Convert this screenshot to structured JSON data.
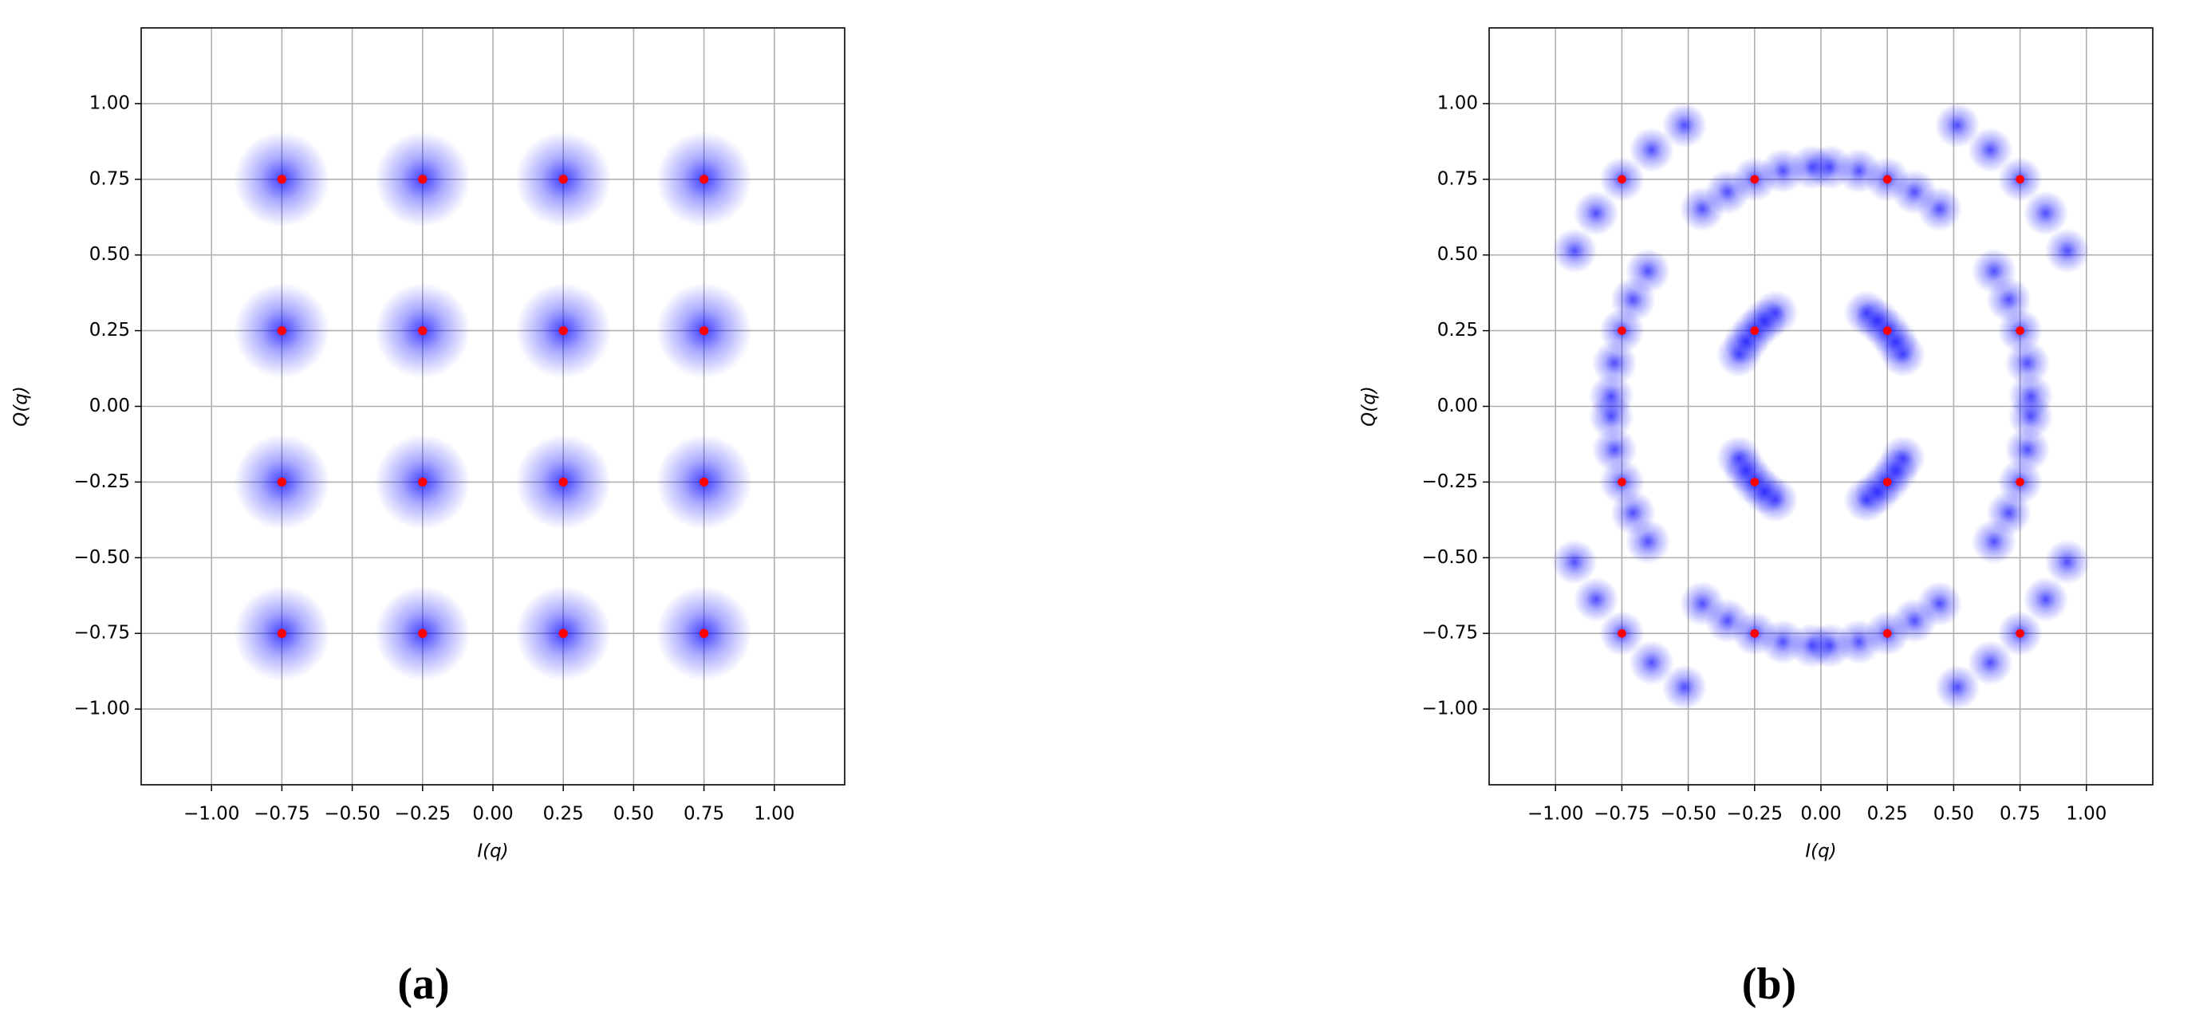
{
  "chart_data": [
    {
      "type": "scatter",
      "xlabel": "I(q)",
      "ylabel": "Q(q)",
      "caption": "(a)",
      "xlim": [
        -1.25,
        1.25
      ],
      "ylim": [
        -1.25,
        1.25
      ],
      "grid": true,
      "xticks": [
        {
          "value": -1,
          "label": "−1.00"
        },
        {
          "value": -0.75,
          "label": "−0.75"
        },
        {
          "value": -0.5,
          "label": "−0.50"
        },
        {
          "value": -0.25,
          "label": "−0.25"
        },
        {
          "value": 0,
          "label": "0.00"
        },
        {
          "value": 0.25,
          "label": "0.25"
        },
        {
          "value": 0.5,
          "label": "0.50"
        },
        {
          "value": 0.75,
          "label": "0.75"
        },
        {
          "value": 1,
          "label": "1.00"
        }
      ],
      "yticks": [
        {
          "value": -1,
          "label": "−1.00"
        },
        {
          "value": -0.75,
          "label": "−0.75"
        },
        {
          "value": -0.5,
          "label": "−0.50"
        },
        {
          "value": -0.25,
          "label": "−0.25"
        },
        {
          "value": 0,
          "label": "0.00"
        },
        {
          "value": 0.25,
          "label": "0.25"
        },
        {
          "value": 0.5,
          "label": "0.50"
        },
        {
          "value": 0.75,
          "label": "0.75"
        },
        {
          "value": 1,
          "label": "1.00"
        }
      ],
      "series": [
        {
          "color": "#0000ff",
          "alpha": 0.75,
          "marker_radius": 0.17,
          "x": [
            -0.75,
            -0.25,
            0.25,
            0.75,
            -0.75,
            -0.25,
            0.25,
            0.75,
            -0.75,
            -0.25,
            0.25,
            0.75,
            -0.75,
            -0.25,
            0.25,
            0.75
          ],
          "y": [
            0.75,
            0.75,
            0.75,
            0.75,
            0.25,
            0.25,
            0.25,
            0.25,
            -0.25,
            -0.25,
            -0.25,
            -0.25,
            -0.75,
            -0.75,
            -0.75,
            -0.75
          ]
        },
        {
          "color": "#ff0000",
          "alpha": 1,
          "marker_radius": 0.016,
          "x": [
            -0.75,
            -0.25,
            0.25,
            0.75,
            -0.75,
            -0.25,
            0.25,
            0.75,
            -0.75,
            -0.25,
            0.25,
            0.75,
            -0.75,
            -0.25,
            0.25,
            0.75
          ],
          "y": [
            0.75,
            0.75,
            0.75,
            0.75,
            0.25,
            0.25,
            0.25,
            0.25,
            -0.25,
            -0.25,
            -0.25,
            -0.25,
            -0.75,
            -0.75,
            -0.75,
            -0.75
          ]
        }
      ]
    },
    {
      "type": "scatter",
      "xlabel": "I(q)",
      "ylabel": "Q(q)",
      "caption": "(b)",
      "xlim": [
        -1.25,
        1.25
      ],
      "ylim": [
        -1.25,
        1.25
      ],
      "grid": true,
      "xticks": [
        {
          "value": -1,
          "label": "−1.00"
        },
        {
          "value": -0.75,
          "label": "−0.75"
        },
        {
          "value": -0.5,
          "label": "−0.50"
        },
        {
          "value": -0.25,
          "label": "−0.25"
        },
        {
          "value": 0,
          "label": "0.00"
        },
        {
          "value": 0.25,
          "label": "0.25"
        },
        {
          "value": 0.5,
          "label": "0.50"
        },
        {
          "value": 0.75,
          "label": "0.75"
        },
        {
          "value": 1,
          "label": "1.00"
        }
      ],
      "yticks": [
        {
          "value": -1,
          "label": "−1.00"
        },
        {
          "value": -0.75,
          "label": "−0.75"
        },
        {
          "value": -0.5,
          "label": "−0.50"
        },
        {
          "value": -0.25,
          "label": "−0.25"
        },
        {
          "value": 0,
          "label": "0.00"
        },
        {
          "value": 0.25,
          "label": "0.25"
        },
        {
          "value": 0.5,
          "label": "0.50"
        },
        {
          "value": 0.75,
          "label": "0.75"
        },
        {
          "value": 1,
          "label": "1.00"
        }
      ],
      "series": [
        {
          "color": "#0000ff",
          "alpha": 0.7,
          "marker_radius": 0.085,
          "x": [
            0.928,
            0.847,
            0.75,
            0.638,
            0.514,
            0.79,
            0.778,
            0.75,
            0.708,
            0.652,
            0.034,
            0.143,
            0.25,
            0.352,
            0.447,
            0.309,
            0.282,
            0.25,
            0.213,
            0.171,
            -0.928,
            -0.847,
            -0.75,
            -0.638,
            -0.514,
            -0.79,
            -0.778,
            -0.75,
            -0.708,
            -0.652,
            -0.034,
            -0.143,
            -0.25,
            -0.352,
            -0.447,
            -0.309,
            -0.282,
            -0.25,
            -0.213,
            -0.171,
            -0.928,
            -0.847,
            -0.75,
            -0.638,
            -0.514,
            -0.79,
            -0.778,
            -0.75,
            -0.708,
            -0.652,
            -0.034,
            -0.143,
            -0.25,
            -0.352,
            -0.447,
            -0.309,
            -0.282,
            -0.25,
            -0.213,
            -0.171,
            0.928,
            0.847,
            0.75,
            0.638,
            0.514,
            0.79,
            0.778,
            0.75,
            0.708,
            0.652,
            0.034,
            0.143,
            0.25,
            0.352,
            0.447,
            0.309,
            0.282,
            0.25,
            0.213,
            0.171
          ],
          "y": [
            0.514,
            0.638,
            0.75,
            0.847,
            0.928,
            0.034,
            0.143,
            0.25,
            0.352,
            0.447,
            0.79,
            0.778,
            0.75,
            0.708,
            0.652,
            0.171,
            0.213,
            0.25,
            0.282,
            0.309,
            0.514,
            0.638,
            0.75,
            0.847,
            0.928,
            0.034,
            0.143,
            0.25,
            0.352,
            0.447,
            0.79,
            0.778,
            0.75,
            0.708,
            0.652,
            0.171,
            0.213,
            0.25,
            0.282,
            0.309,
            -0.514,
            -0.638,
            -0.75,
            -0.847,
            -0.928,
            -0.034,
            -0.143,
            -0.25,
            -0.352,
            -0.447,
            -0.79,
            -0.778,
            -0.75,
            -0.708,
            -0.652,
            -0.171,
            -0.213,
            -0.25,
            -0.282,
            -0.309,
            -0.514,
            -0.638,
            -0.75,
            -0.847,
            -0.928,
            -0.034,
            -0.143,
            -0.25,
            -0.352,
            -0.447,
            -0.79,
            -0.778,
            -0.75,
            -0.708,
            -0.652,
            -0.171,
            -0.213,
            -0.25,
            -0.282,
            -0.309
          ]
        },
        {
          "color": "#ff0000",
          "alpha": 1,
          "marker_radius": 0.016,
          "x": [
            -0.75,
            -0.25,
            0.25,
            0.75,
            -0.75,
            -0.25,
            0.25,
            0.75,
            -0.75,
            -0.25,
            0.25,
            0.75,
            -0.75,
            -0.25,
            0.25,
            0.75
          ],
          "y": [
            0.75,
            0.75,
            0.75,
            0.75,
            0.25,
            0.25,
            0.25,
            0.25,
            -0.25,
            -0.25,
            -0.25,
            -0.25,
            -0.75,
            -0.75,
            -0.75,
            -0.75
          ]
        }
      ]
    }
  ]
}
